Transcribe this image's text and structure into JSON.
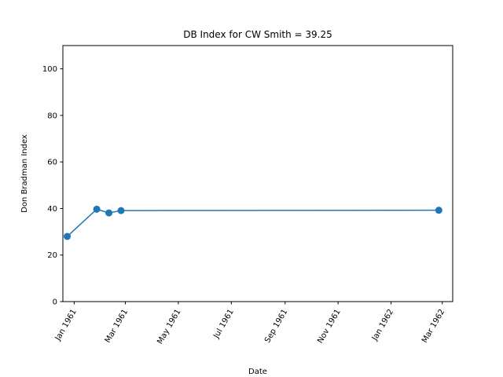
{
  "chart_data": {
    "type": "line",
    "title": "DB Index for CW Smith = 39.25",
    "xlabel": "Date",
    "ylabel": "Don Bradman Index",
    "x_axis_type": "date",
    "xlim": [
      "1960-12-19",
      "1962-03-13"
    ],
    "ylim": [
      0,
      110
    ],
    "yticks": [
      0,
      20,
      40,
      60,
      80,
      100
    ],
    "xticks": [
      {
        "date": "1961-01-01",
        "label": "Jan 1961"
      },
      {
        "date": "1961-03-01",
        "label": "Mar 1961"
      },
      {
        "date": "1961-05-01",
        "label": "May 1961"
      },
      {
        "date": "1961-07-01",
        "label": "Jul 1961"
      },
      {
        "date": "1961-09-01",
        "label": "Sep 1961"
      },
      {
        "date": "1961-11-01",
        "label": "Nov 1961"
      },
      {
        "date": "1962-01-01",
        "label": "Jan 1962"
      },
      {
        "date": "1962-03-01",
        "label": "Mar 1962"
      }
    ],
    "series": [
      {
        "color": "#1f77b4",
        "marker": "circle",
        "points": [
          {
            "x": "1960-12-24",
            "y": 28.0
          },
          {
            "x": "1961-01-27",
            "y": 39.7
          },
          {
            "x": "1961-02-10",
            "y": 38.1
          },
          {
            "x": "1961-02-24",
            "y": 39.1
          },
          {
            "x": "1962-02-25",
            "y": 39.25
          }
        ]
      }
    ],
    "grid": false,
    "legend": "none"
  }
}
